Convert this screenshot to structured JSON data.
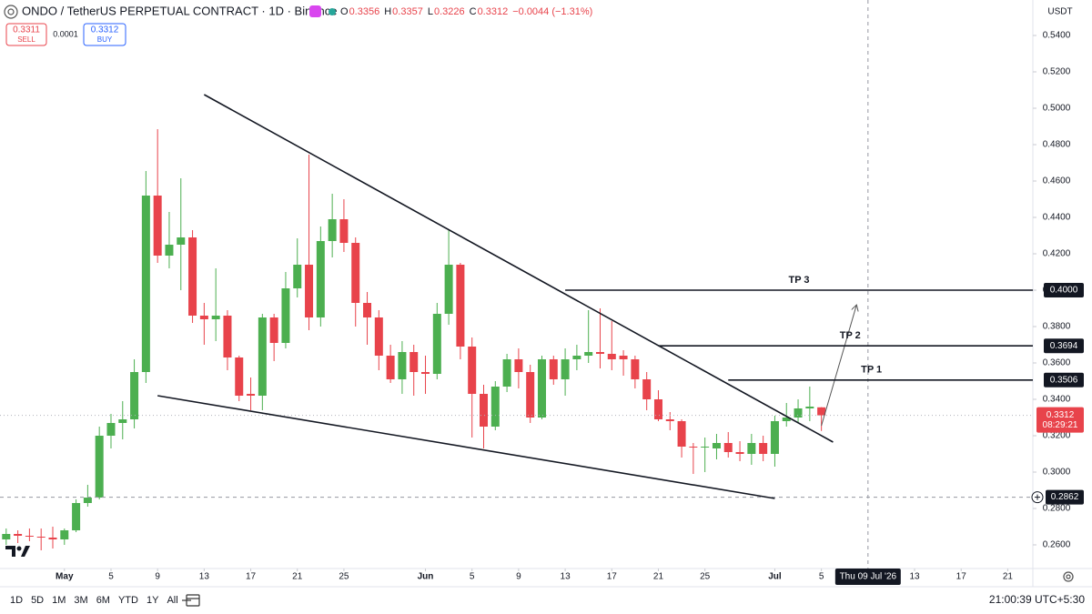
{
  "chart_data": {
    "type": "candlestick",
    "title": "ONDO / TetherUS PERPETUAL CONTRACT · 1D · Binance",
    "legend_labels": [
      "O",
      "H",
      "L",
      "C"
    ],
    "change": "−0.0044 (−1.31%)",
    "trade_panel": {
      "sell_price": "0.3311",
      "sell_label": "SELL",
      "spread": "0.0001",
      "buy_price": "0.3312",
      "buy_label": "BUY"
    },
    "y_unit": "USDT",
    "up_color": "#4caf50",
    "down_color": "#e8434b",
    "x": [
      "2026-04-26",
      "2026-04-27",
      "2026-04-28",
      "2026-04-29",
      "2026-04-30",
      "2026-05-01",
      "2026-05-02",
      "2026-05-03",
      "2026-05-04",
      "2026-05-05",
      "2026-05-06",
      "2026-05-07",
      "2026-05-08",
      "2026-05-09",
      "2026-05-10",
      "2026-05-11",
      "2026-05-12",
      "2026-05-13",
      "2026-05-14",
      "2026-05-15",
      "2026-05-16",
      "2026-05-17",
      "2026-05-18",
      "2026-05-19",
      "2026-05-20",
      "2026-05-21",
      "2026-05-22",
      "2026-05-23",
      "2026-05-24",
      "2026-05-25",
      "2026-05-26",
      "2026-05-27",
      "2026-05-28",
      "2026-05-29",
      "2026-05-30",
      "2026-05-31",
      "2026-06-01",
      "2026-06-02",
      "2026-06-03",
      "2026-06-04",
      "2026-06-05",
      "2026-06-06",
      "2026-06-07",
      "2026-06-08",
      "2026-06-09",
      "2026-06-10",
      "2026-06-11",
      "2026-06-12",
      "2026-06-13",
      "2026-06-14",
      "2026-06-15",
      "2026-06-16",
      "2026-06-17",
      "2026-06-18",
      "2026-06-19",
      "2026-06-20",
      "2026-06-21",
      "2026-06-22",
      "2026-06-23",
      "2026-06-24",
      "2026-06-25",
      "2026-06-26",
      "2026-06-27",
      "2026-06-28",
      "2026-06-29",
      "2026-06-30",
      "2026-07-01",
      "2026-07-02",
      "2026-07-03",
      "2026-07-04",
      "2026-07-05"
    ],
    "open": [
      0.263,
      0.266,
      0.265,
      0.2645,
      0.264,
      0.263,
      0.268,
      0.283,
      0.286,
      0.32,
      0.327,
      0.329,
      0.355,
      0.452,
      0.419,
      0.425,
      0.429,
      0.386,
      0.384,
      0.386,
      0.363,
      0.343,
      0.342,
      0.385,
      0.371,
      0.401,
      0.414,
      0.385,
      0.427,
      0.439,
      0.426,
      0.393,
      0.385,
      0.364,
      0.351,
      0.366,
      0.355,
      0.354,
      0.387,
      0.414,
      0.369,
      0.343,
      0.325,
      0.347,
      0.362,
      0.355,
      0.33,
      0.362,
      0.351,
      0.362,
      0.364,
      0.366,
      0.365,
      0.364,
      0.362,
      0.351,
      0.34,
      0.329,
      0.328,
      0.314,
      0.3135,
      0.313,
      0.316,
      0.311,
      0.31,
      0.316,
      0.31,
      0.328,
      0.33,
      0.335,
      0.3356
    ],
    "high": [
      0.269,
      0.268,
      0.269,
      0.269,
      0.27,
      0.269,
      0.285,
      0.293,
      0.325,
      0.332,
      0.339,
      0.362,
      0.4655,
      0.4885,
      0.443,
      0.4615,
      0.433,
      0.393,
      0.412,
      0.389,
      0.364,
      0.352,
      0.387,
      0.387,
      0.41,
      0.4285,
      0.4745,
      0.435,
      0.453,
      0.45,
      0.429,
      0.399,
      0.389,
      0.37,
      0.372,
      0.37,
      0.364,
      0.393,
      0.433,
      0.415,
      0.374,
      0.348,
      0.35,
      0.365,
      0.368,
      0.359,
      0.364,
      0.364,
      0.368,
      0.37,
      0.389,
      0.39,
      0.383,
      0.367,
      0.364,
      0.355,
      0.345,
      0.333,
      0.329,
      0.316,
      0.319,
      0.321,
      0.322,
      0.317,
      0.321,
      0.32,
      0.331,
      0.338,
      0.34,
      0.347,
      0.3357
    ],
    "low": [
      0.26,
      0.261,
      0.262,
      0.257,
      0.258,
      0.26,
      0.267,
      0.281,
      0.285,
      0.313,
      0.318,
      0.324,
      0.349,
      0.415,
      0.412,
      0.4,
      0.382,
      0.37,
      0.372,
      0.356,
      0.339,
      0.334,
      0.334,
      0.361,
      0.368,
      0.396,
      0.378,
      0.38,
      0.418,
      0.421,
      0.38,
      0.37,
      0.356,
      0.349,
      0.343,
      0.342,
      0.343,
      0.351,
      0.381,
      0.362,
      0.319,
      0.313,
      0.323,
      0.344,
      0.346,
      0.327,
      0.329,
      0.348,
      0.342,
      0.356,
      0.36,
      0.357,
      0.356,
      0.353,
      0.346,
      0.334,
      0.328,
      0.323,
      0.308,
      0.299,
      0.3,
      0.307,
      0.308,
      0.306,
      0.304,
      0.306,
      0.303,
      0.325,
      0.327,
      0.328,
      0.3226
    ],
    "close": [
      0.266,
      0.265,
      0.2645,
      0.264,
      0.263,
      0.268,
      0.283,
      0.286,
      0.32,
      0.327,
      0.329,
      0.355,
      0.452,
      0.419,
      0.425,
      0.429,
      0.386,
      0.384,
      0.386,
      0.363,
      0.342,
      0.342,
      0.385,
      0.371,
      0.401,
      0.414,
      0.385,
      0.427,
      0.439,
      0.426,
      0.393,
      0.385,
      0.364,
      0.351,
      0.366,
      0.355,
      0.354,
      0.387,
      0.414,
      0.369,
      0.343,
      0.325,
      0.347,
      0.362,
      0.355,
      0.33,
      0.362,
      0.351,
      0.362,
      0.364,
      0.366,
      0.365,
      0.362,
      0.362,
      0.351,
      0.34,
      0.329,
      0.328,
      0.314,
      0.3135,
      0.314,
      0.316,
      0.311,
      0.31,
      0.316,
      0.31,
      0.328,
      0.33,
      0.335,
      0.336,
      0.3312
    ],
    "xlim": [
      "2026-04-25",
      "2026-07-23"
    ],
    "xticks": [
      {
        "value": "2026-05-01",
        "label": "May"
      },
      {
        "value": "2026-05-05",
        "label": "5"
      },
      {
        "value": "2026-05-09",
        "label": "9"
      },
      {
        "value": "2026-05-13",
        "label": "13"
      },
      {
        "value": "2026-05-17",
        "label": "17"
      },
      {
        "value": "2026-05-21",
        "label": "21"
      },
      {
        "value": "2026-05-25",
        "label": "25"
      },
      {
        "value": "2026-06-01",
        "label": "Jun"
      },
      {
        "value": "2026-06-05",
        "label": "5"
      },
      {
        "value": "2026-06-09",
        "label": "9"
      },
      {
        "value": "2026-06-13",
        "label": "13"
      },
      {
        "value": "2026-06-17",
        "label": "17"
      },
      {
        "value": "2026-06-21",
        "label": "21"
      },
      {
        "value": "2026-06-25",
        "label": "25"
      },
      {
        "value": "2026-07-01",
        "label": "Jul"
      },
      {
        "value": "2026-07-05",
        "label": "5"
      },
      {
        "value": "2026-07-13",
        "label": "13"
      },
      {
        "value": "2026-07-17",
        "label": "17"
      },
      {
        "value": "2026-07-21",
        "label": "21"
      }
    ],
    "ylim": [
      0.247,
      0.557
    ],
    "yticks": [
      {
        "value": 0.26,
        "label": "0.2600"
      },
      {
        "value": 0.28,
        "label": "0.2800"
      },
      {
        "value": 0.3,
        "label": "0.3000"
      },
      {
        "value": 0.32,
        "label": "0.3200"
      },
      {
        "value": 0.34,
        "label": "0.3400"
      },
      {
        "value": 0.36,
        "label": "0.3600"
      },
      {
        "value": 0.38,
        "label": "0.3800"
      },
      {
        "value": 0.4,
        "label": "0.4000"
      },
      {
        "value": 0.42,
        "label": "0.4200"
      },
      {
        "value": 0.44,
        "label": "0.4400"
      },
      {
        "value": 0.46,
        "label": "0.4600"
      },
      {
        "value": 0.48,
        "label": "0.4800"
      },
      {
        "value": 0.5,
        "label": "0.5000"
      },
      {
        "value": 0.52,
        "label": "0.5200"
      },
      {
        "value": 0.54,
        "label": "0.5400"
      }
    ],
    "grid": false,
    "trendlines": [
      {
        "x": [
          "2026-05-13",
          "2026-07-06"
        ],
        "values": [
          0.5075,
          0.3165
        ]
      },
      {
        "x": [
          "2026-05-09",
          "2026-07-01"
        ],
        "values": [
          0.342,
          0.2855
        ]
      }
    ],
    "levels": [
      {
        "name": "TP 3",
        "value": 0.4,
        "label": "0.4000",
        "start": "2026-06-13"
      },
      {
        "name": "TP 2",
        "value": 0.3694,
        "start": "2026-06-21"
      },
      {
        "name": "TP 1",
        "value": 0.3506,
        "start": "2026-06-27"
      }
    ],
    "arrow": {
      "x": [
        "2026-07-05",
        "2026-07-08"
      ],
      "values": [
        0.3255,
        0.3915
      ]
    },
    "last_price": 0.3312,
    "countdown": "08:29:21",
    "crosshair": {
      "price": 0.2862,
      "date": "2026-07-09",
      "date_label": "Thu 09 Jul '26"
    },
    "timeframes": [
      "1D",
      "5D",
      "1M",
      "3M",
      "6M",
      "YTD",
      "1Y",
      "All"
    ],
    "clock": "21:00:39 UTC+5:30"
  }
}
